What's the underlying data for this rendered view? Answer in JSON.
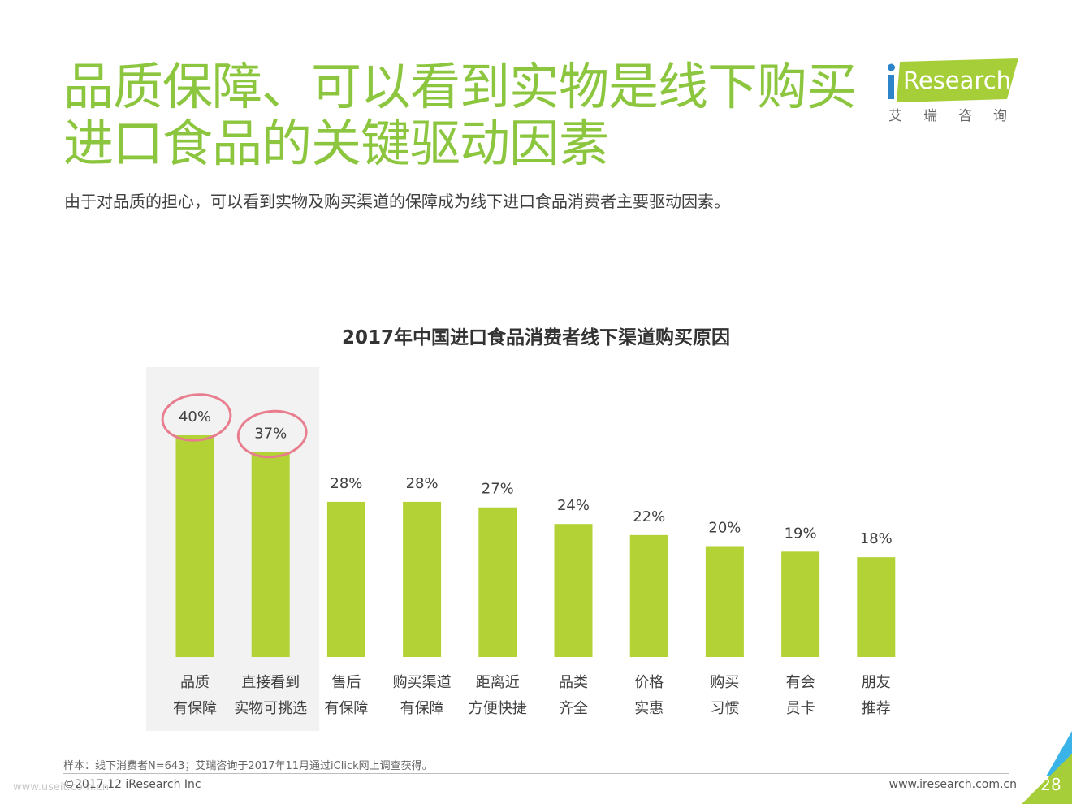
{
  "header": {
    "title": "品质保障、可以看到实物是线下购买进口食品的关键驱动因素",
    "subtitle": "由于对品质的担心，可以看到实物及购买渠道的保障成为线下进口食品消费者主要驱动因素。",
    "logo_text": "Research",
    "logo_sub": "艾瑞咨询"
  },
  "chart_data": {
    "type": "bar",
    "title": "2017年中国进口食品消费者线下渠道购买原因",
    "categories": [
      [
        "品质",
        "有保障"
      ],
      [
        "直接看到",
        "实物可挑选"
      ],
      [
        "售后",
        "有保障"
      ],
      [
        "购买渠道",
        "有保障"
      ],
      [
        "距离近",
        "方便快捷"
      ],
      [
        "品类",
        "齐全"
      ],
      [
        "价格",
        "实惠"
      ],
      [
        "购买",
        "习惯"
      ],
      [
        "有会",
        "员卡"
      ],
      [
        "朋友",
        "推荐"
      ]
    ],
    "values": [
      40,
      37,
      28,
      28,
      27,
      24,
      22,
      20,
      19,
      18
    ],
    "value_labels": [
      "40%",
      "37%",
      "28%",
      "28%",
      "27%",
      "24%",
      "22%",
      "20%",
      "19%",
      "18%"
    ],
    "ylim": [
      0,
      40
    ],
    "highlighted": [
      0,
      1
    ],
    "circled": [
      0,
      1
    ],
    "grid": false,
    "bar_color": "#b2d235",
    "highlight_bg": "#f2f2f2",
    "circle_color": "#e87d8e"
  },
  "footer": {
    "note": "样本：线下消费者N=643；艾瑞咨询于2017年11月通过iClick网上调查获得。",
    "copyright": "©2017.12 iResearch Inc",
    "website": "www.iresearch.com.cn",
    "page": "28",
    "watermark": "www.useit.com.cn"
  },
  "colors": {
    "title": "#8cc63f",
    "logo_bg": "#a6ce39",
    "corner_blue": "#3ab4e8",
    "corner_green": "#a6ce39"
  }
}
